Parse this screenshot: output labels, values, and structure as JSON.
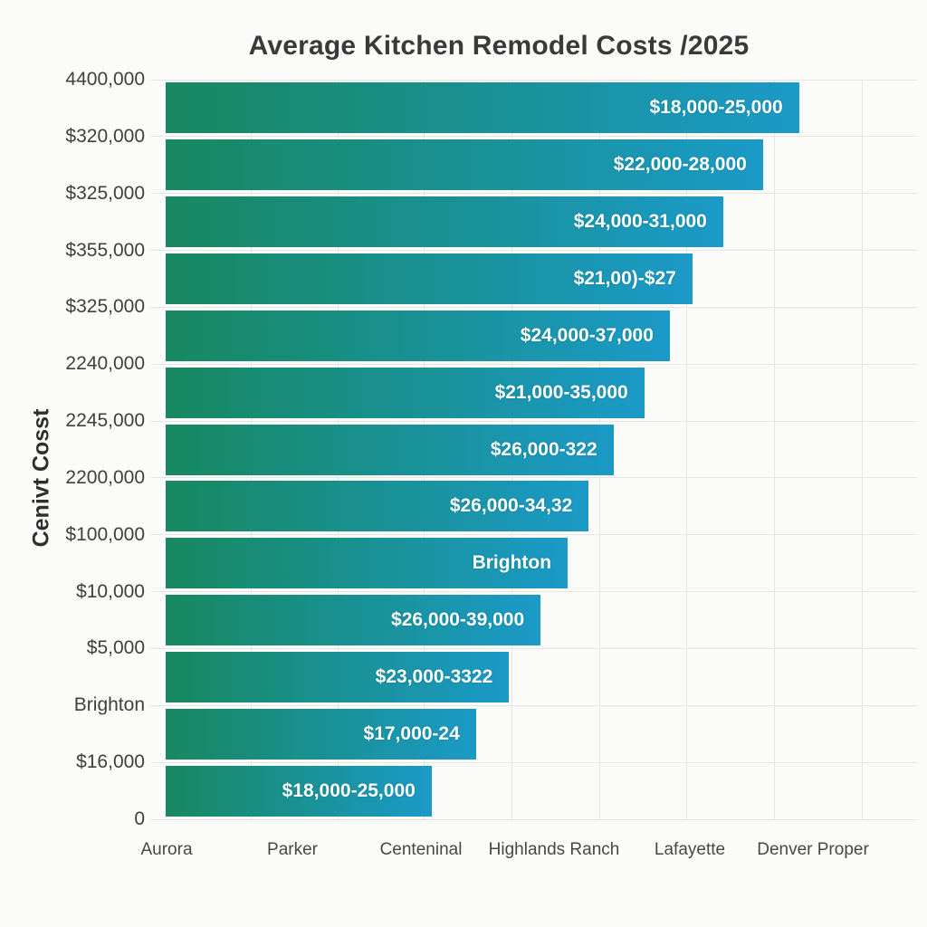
{
  "chart_data": {
    "type": "bar",
    "orientation": "horizontal",
    "title": "Average Kitchen Remodel Costs /2025",
    "ylabel": "Cenivt Cosst",
    "xlabel": "",
    "grid": true,
    "legend": false,
    "value_unit": "percent_of_plot_width",
    "y_tick_labels": [
      "4400,000",
      "$320,000",
      "$325,000",
      "$355,000",
      "$325,000",
      "2240,000",
      "2245,000",
      "2200,000",
      "$100,000",
      "$10,000",
      "$5,000",
      "Brighton",
      "$16,000",
      "0"
    ],
    "x_tick_labels": [
      "Aurora",
      "Parker",
      "Centeninal",
      "Highlands Ranch",
      "Lafayette",
      "Denver Proper"
    ],
    "bars": [
      {
        "label": "$18,000-25,000",
        "value": 84.3
      },
      {
        "label": "$22,000-28,000",
        "value": 79.5
      },
      {
        "label": "$24,000-31,000",
        "value": 74.2
      },
      {
        "label": "$21,00)-$27",
        "value": 70.1
      },
      {
        "label": "$24,000-37,000",
        "value": 67.1
      },
      {
        "label": "$21,000-35,000",
        "value": 63.7
      },
      {
        "label": "$26,000-322",
        "value": 59.6
      },
      {
        "label": "$26,000-34,32",
        "value": 56.3
      },
      {
        "label": "Brighton",
        "value": 53.5
      },
      {
        "label": "$26,000-39,000",
        "value": 49.9
      },
      {
        "label": "$23,000-3322",
        "value": 45.7
      },
      {
        "label": "$17,000-24",
        "value": 41.3
      },
      {
        "label": "$18,000-25,000",
        "value": 35.4
      }
    ],
    "colors": {
      "bar_gradient_start": "#17885f",
      "bar_gradient_end": "#1b9ac8",
      "gridline": "#e5e5e2",
      "title_text": "#3a3a3a",
      "tick_text": "#3f3f3f",
      "bar_label_text": "#ffffff",
      "background": "#fbfbf9"
    }
  }
}
